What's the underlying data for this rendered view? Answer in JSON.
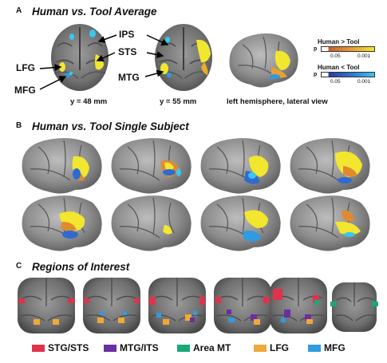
{
  "panel_a": {
    "letter": "A",
    "title": "Human vs. Tool Average",
    "region_labels": {
      "ips": "IPS",
      "sts": "STS",
      "lfg": "LFG",
      "mtg": "MTG",
      "mfg": "MFG"
    },
    "slice_captions": {
      "left": "y = 48 mm",
      "right": "y = 55 mm",
      "lateral": "left hemisphere, lateral view"
    },
    "legend": {
      "pos_title": "Human > Tool",
      "neg_title": "Human < Tool",
      "p_label": "p",
      "pos_ticks": [
        "0.05",
        "0.001"
      ],
      "neg_ticks": [
        "0.05",
        "0.001"
      ],
      "pos_colors": [
        "#c8602a",
        "#f2e62e"
      ],
      "neg_colors": [
        "#2b3aa0",
        "#39c6f0"
      ]
    }
  },
  "panel_b": {
    "letter": "B",
    "title": "Human vs. Tool Single Subject"
  },
  "panel_c": {
    "letter": "C",
    "title": "Regions of Interest",
    "legend": [
      {
        "label": "STG/STS",
        "color": "#e0334a"
      },
      {
        "label": "MTG/ITS",
        "color": "#6a2fa0"
      },
      {
        "label": "Area MT",
        "color": "#1aa878"
      },
      {
        "label": "LFG",
        "color": "#f0a83a"
      },
      {
        "label": "MFG",
        "color": "#2f9be0"
      }
    ]
  }
}
